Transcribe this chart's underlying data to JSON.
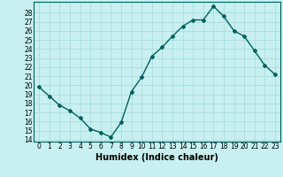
{
  "x": [
    0,
    1,
    2,
    3,
    4,
    5,
    6,
    7,
    8,
    9,
    10,
    11,
    12,
    13,
    14,
    15,
    16,
    17,
    18,
    19,
    20,
    21,
    22,
    23
  ],
  "y": [
    19.8,
    18.8,
    17.8,
    17.2,
    16.4,
    15.2,
    14.8,
    14.3,
    15.9,
    19.3,
    20.9,
    23.2,
    24.2,
    25.4,
    26.5,
    27.2,
    27.2,
    28.7,
    27.6,
    26.0,
    25.4,
    23.8,
    22.2,
    21.2
  ],
  "line_color": "#006060",
  "marker": "D",
  "marker_size": 2.0,
  "bg_color": "#c8f0f0",
  "grid_color": "#aadddd",
  "xlabel": "Humidex (Indice chaleur)",
  "ylabel_ticks": [
    14,
    15,
    16,
    17,
    18,
    19,
    20,
    21,
    22,
    23,
    24,
    25,
    26,
    27,
    28
  ],
  "ylim": [
    13.8,
    29.2
  ],
  "xlim": [
    -0.5,
    23.5
  ],
  "xticks": [
    0,
    1,
    2,
    3,
    4,
    5,
    6,
    7,
    8,
    9,
    10,
    11,
    12,
    13,
    14,
    15,
    16,
    17,
    18,
    19,
    20,
    21,
    22,
    23
  ],
  "xlabel_fontsize": 7,
  "tick_fontsize": 5.5,
  "linewidth": 1.0
}
